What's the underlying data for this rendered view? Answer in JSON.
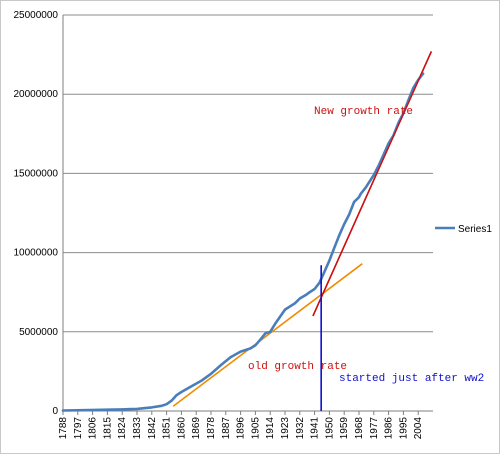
{
  "chart_data": {
    "type": "line",
    "title": "",
    "xlabel": "",
    "ylabel": "",
    "ylim": [
      0,
      25000000
    ],
    "y_ticks": [
      "0",
      "5000000",
      "10000000",
      "15000000",
      "20000000",
      "25000000"
    ],
    "x_ticks": [
      "1788",
      "1797",
      "1806",
      "1815",
      "1824",
      "1833",
      "1842",
      "1851",
      "1860",
      "1869",
      "1878",
      "1887",
      "1896",
      "1905",
      "1914",
      "1923",
      "1932",
      "1941",
      "1950",
      "1959",
      "1968",
      "1977",
      "1986",
      "1995",
      "2004"
    ],
    "grid": true,
    "legend_position": "right",
    "series": [
      {
        "name": "Series1",
        "color": "#4a7ebb",
        "x": [
          1788,
          1800,
          1815,
          1824,
          1833,
          1838,
          1842,
          1848,
          1851,
          1854,
          1857,
          1860,
          1866,
          1872,
          1878,
          1884,
          1890,
          1896,
          1902,
          1905,
          1908,
          1911,
          1914,
          1917,
          1923,
          1929,
          1932,
          1936,
          1938,
          1941,
          1944,
          1947,
          1950,
          1953,
          1956,
          1959,
          1962,
          1965,
          1968,
          1969,
          1972,
          1977,
          1980,
          1983,
          1986,
          1989,
          1992,
          1995,
          1998,
          2001,
          2004,
          2007
        ],
        "values": [
          30000,
          50000,
          80000,
          100000,
          130000,
          180000,
          230000,
          330000,
          430000,
          650000,
          1000000,
          1200000,
          1550000,
          1900000,
          2350000,
          2900000,
          3400000,
          3750000,
          3950000,
          4150000,
          4500000,
          4900000,
          5000000,
          5500000,
          6400000,
          6800000,
          7100000,
          7350000,
          7500000,
          7700000,
          8100000,
          8800000,
          9500000,
          10300000,
          11100000,
          11800000,
          12400000,
          13200000,
          13500000,
          13700000,
          14100000,
          14900000,
          15500000,
          16200000,
          16900000,
          17400000,
          18200000,
          18800000,
          19600000,
          20400000,
          20900000,
          21300000
        ]
      }
    ],
    "trendlines": [
      {
        "label": "old growth rate",
        "color": "#f08c00",
        "x": [
          1855,
          1970
        ],
        "values": [
          300000,
          9300000
        ]
      },
      {
        "label": "New growth rate",
        "color": "#cc1111",
        "x": [
          1940,
          2012
        ],
        "values": [
          6000000,
          22700000
        ]
      }
    ],
    "marker_line": {
      "label": "started just after ww2",
      "color": "#1111cc",
      "x": 1945,
      "values": [
        0,
        9200000
      ]
    },
    "annotations": [
      {
        "text": "New growth rate",
        "color": "#cc1111"
      },
      {
        "text": "old growth rate",
        "color": "#cc1111"
      },
      {
        "text": "started just after ww2",
        "color": "#1111cc"
      }
    ]
  }
}
